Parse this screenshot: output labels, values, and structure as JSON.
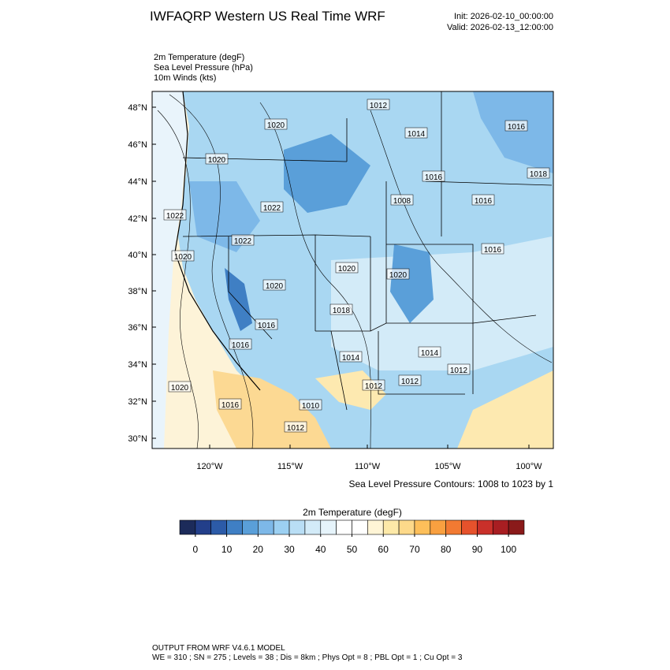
{
  "header": {
    "title": "IWFAQRP Western US Real Time WRF",
    "init": "Init: 2026-02-10_00:00:00",
    "valid": "Valid: 2026-02-13_12:00:00"
  },
  "fields": [
    "2m Temperature   (degF)",
    "Sea Level Pressure   (hPa)",
    "10m Winds   (kts)"
  ],
  "map": {
    "lat_labels": [
      "48°N",
      "46°N",
      "44°N",
      "42°N",
      "40°N",
      "38°N",
      "36°N",
      "34°N",
      "32°N",
      "30°N"
    ],
    "lon_labels": [
      "120°W",
      "115°W",
      "110°W",
      "105°W",
      "100°W"
    ],
    "contour_labels": [
      1012,
      1014,
      1016,
      1018,
      1016,
      1008,
      1016,
      1020,
      1020,
      1022,
      1022,
      1022,
      1020,
      1016,
      1020,
      1020,
      1020,
      1018,
      1016,
      1016,
      1014,
      1014,
      1012,
      1012,
      1012,
      1020,
      1016,
      1010,
      1012
    ],
    "contour_note": "Sea Level Pressure Contours: 1008 to 1023 by 1"
  },
  "colorbar": {
    "title": "2m Temperature  (degF)",
    "lim": [
      -5,
      105
    ],
    "ticks": [
      0,
      10,
      20,
      30,
      40,
      50,
      60,
      70,
      80,
      90,
      100
    ],
    "colors": [
      "#1c2b5a",
      "#233f8a",
      "#2c5ba8",
      "#3f7fc4",
      "#5a9fd9",
      "#7db8e8",
      "#9cd0f2",
      "#b9def5",
      "#d3ebf8",
      "#e6f4fb",
      "#ffffff",
      "#ffffff",
      "#fff5d6",
      "#fde9a8",
      "#fdd98a",
      "#fdbf5a",
      "#f9a040",
      "#f27a32",
      "#e6522c",
      "#c9302a",
      "#a81e22",
      "#8a1a1a"
    ]
  },
  "footer": {
    "line1": "OUTPUT FROM WRF V4.6.1 MODEL",
    "line2": "WE = 310 ; SN = 275 ; Levels = 38 ; Dis = 8km ; Phys Opt = 8 ; PBL Opt = 1 ; Cu Opt = 3"
  }
}
